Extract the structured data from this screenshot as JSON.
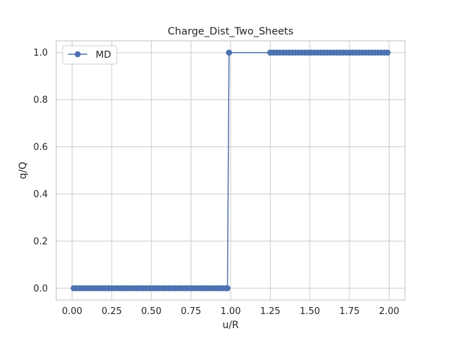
{
  "chart_data": {
    "type": "line",
    "title": "Charge_Dist_Two_Sheets",
    "xlabel": "u/R",
    "ylabel": "q/Q",
    "xlim": [
      -0.1,
      2.1
    ],
    "ylim": [
      -0.05,
      1.05
    ],
    "x_ticks": [
      0.0,
      0.25,
      0.5,
      0.75,
      1.0,
      1.25,
      1.5,
      1.75,
      2.0
    ],
    "x_tick_labels": [
      "0.00",
      "0.25",
      "0.50",
      "0.75",
      "1.00",
      "1.25",
      "1.50",
      "1.75",
      "2.00"
    ],
    "y_ticks": [
      0.0,
      0.2,
      0.4,
      0.6,
      0.8,
      1.0
    ],
    "y_tick_labels": [
      "0.0",
      "0.2",
      "0.4",
      "0.6",
      "0.8",
      "1.0"
    ],
    "grid": true,
    "legend_position": "top-left",
    "series": [
      {
        "name": "MD",
        "color": "#4c72b0",
        "marker": "circle",
        "x": [
          0.01,
          0.03,
          0.05,
          0.07,
          0.09,
          0.11,
          0.13,
          0.15,
          0.17,
          0.19,
          0.21,
          0.23,
          0.25,
          0.27,
          0.29,
          0.31,
          0.33,
          0.35,
          0.37,
          0.39,
          0.41,
          0.43,
          0.45,
          0.47,
          0.49,
          0.51,
          0.53,
          0.55,
          0.57,
          0.59,
          0.61,
          0.63,
          0.65,
          0.67,
          0.69,
          0.71,
          0.73,
          0.75,
          0.77,
          0.79,
          0.81,
          0.83,
          0.85,
          0.87,
          0.89,
          0.91,
          0.93,
          0.95,
          0.97,
          0.98,
          0.99,
          1.25,
          1.27,
          1.29,
          1.31,
          1.33,
          1.35,
          1.37,
          1.39,
          1.41,
          1.43,
          1.45,
          1.47,
          1.49,
          1.51,
          1.53,
          1.55,
          1.57,
          1.59,
          1.61,
          1.63,
          1.65,
          1.67,
          1.69,
          1.71,
          1.73,
          1.75,
          1.77,
          1.79,
          1.81,
          1.83,
          1.85,
          1.87,
          1.89,
          1.91,
          1.93,
          1.95,
          1.97,
          1.99
        ],
        "y": [
          0,
          0,
          0,
          0,
          0,
          0,
          0,
          0,
          0,
          0,
          0,
          0,
          0,
          0,
          0,
          0,
          0,
          0,
          0,
          0,
          0,
          0,
          0,
          0,
          0,
          0,
          0,
          0,
          0,
          0,
          0,
          0,
          0,
          0,
          0,
          0,
          0,
          0,
          0,
          0,
          0,
          0,
          0,
          0,
          0,
          0,
          0,
          0,
          0,
          0,
          1,
          1,
          1,
          1,
          1,
          1,
          1,
          1,
          1,
          1,
          1,
          1,
          1,
          1,
          1,
          1,
          1,
          1,
          1,
          1,
          1,
          1,
          1,
          1,
          1,
          1,
          1,
          1,
          1,
          1,
          1,
          1,
          1,
          1,
          1,
          1,
          1,
          1,
          1
        ]
      }
    ]
  }
}
